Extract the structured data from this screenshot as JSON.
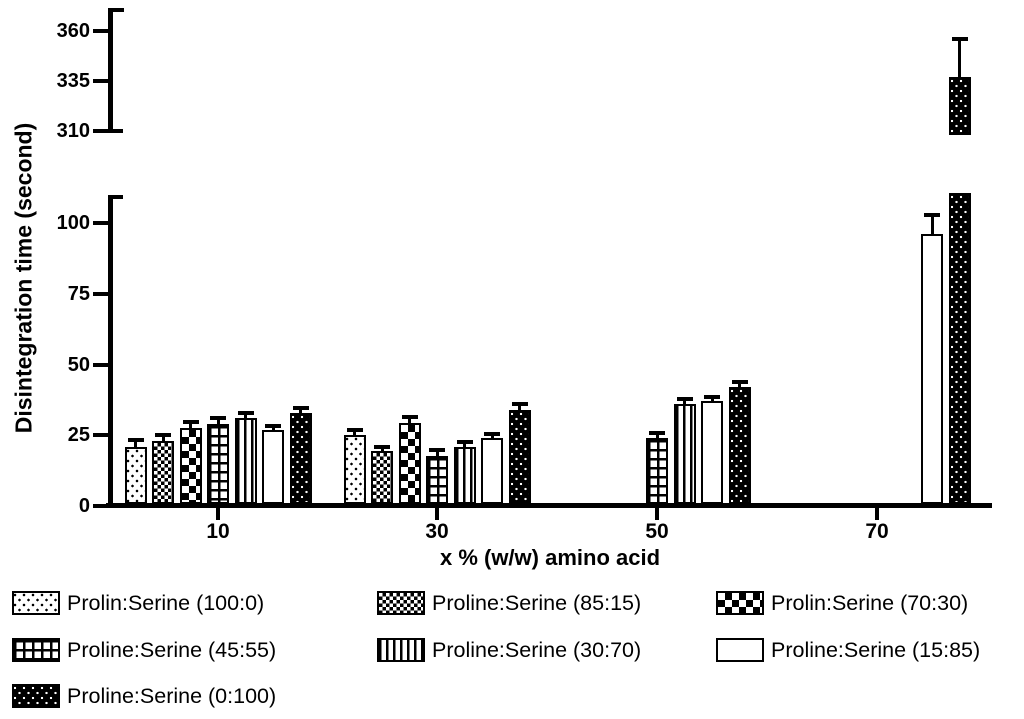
{
  "chart_data": {
    "type": "bar",
    "title": "",
    "xlabel": "x % (w/w) amino acid",
    "ylabel": "Disintegration time (second)",
    "categories": [
      "10",
      "30",
      "50",
      "70"
    ],
    "series": [
      {
        "name": "Prolin:Serine (100:0)",
        "pattern": "dots",
        "values": [
          21,
          25,
          null,
          null
        ],
        "errors": [
          1.5,
          1.2,
          null,
          null
        ]
      },
      {
        "name": "Proline:Serine (85:15)",
        "pattern": "finecheck",
        "values": [
          23,
          19.5,
          null,
          null
        ],
        "errors": [
          1.5,
          0.8,
          null,
          null
        ]
      },
      {
        "name": "Prolin:Serine (70:30)",
        "pattern": "check",
        "values": [
          27.5,
          29.5,
          null,
          null
        ],
        "errors": [
          1.5,
          1.2,
          null,
          null
        ]
      },
      {
        "name": "Proline:Serine (45:55)",
        "pattern": "grid",
        "values": [
          29,
          17.5,
          24,
          null
        ],
        "errors": [
          1.5,
          1.5,
          1.2,
          null
        ]
      },
      {
        "name": "Proline:Serine (30:70)",
        "pattern": "vlines",
        "values": [
          31,
          21,
          36,
          null
        ],
        "errors": [
          1.2,
          0.8,
          1.2,
          null
        ]
      },
      {
        "name": "Proline:Serine (15:85)",
        "pattern": "plain",
        "values": [
          27,
          24,
          37,
          96
        ],
        "errors": [
          0.7,
          0.8,
          0.8,
          6
        ]
      },
      {
        "name": "Proline:Serine (0:100)",
        "pattern": "blackdots",
        "values": [
          33,
          34,
          42,
          337
        ],
        "errors": [
          0.8,
          1.5,
          1.0,
          18
        ]
      }
    ],
    "y_axis": {
      "broken": true,
      "lower_ticks": [
        0,
        25,
        50,
        75,
        100
      ],
      "lower_range": [
        0,
        110
      ],
      "upper_ticks": [
        310,
        335,
        360
      ],
      "upper_range": [
        310,
        372
      ]
    },
    "legend_position": "bottom",
    "grid": false,
    "colors": {
      "foreground": "#000000",
      "background": "#ffffff"
    }
  }
}
